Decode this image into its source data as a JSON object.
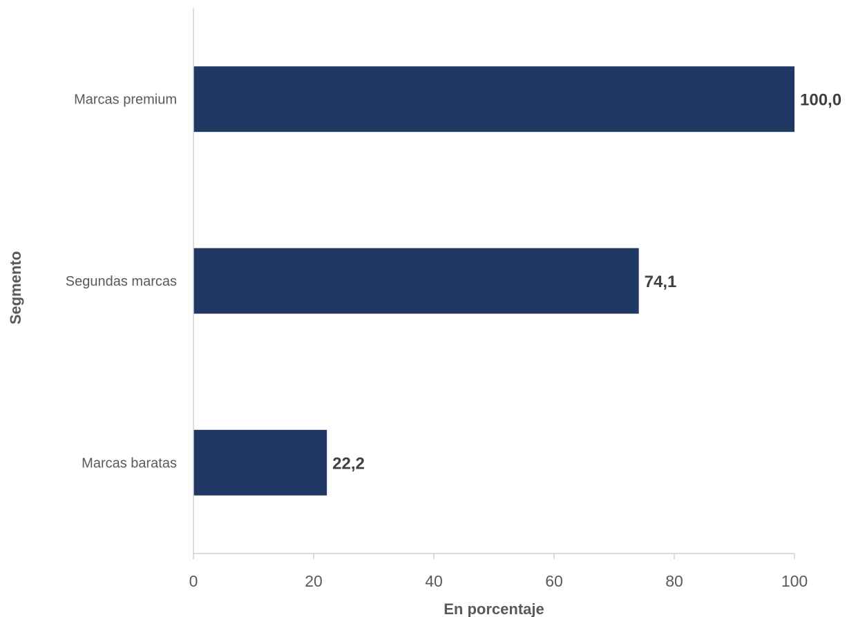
{
  "chart_data": {
    "type": "bar",
    "orientation": "horizontal",
    "categories": [
      "Marcas premium",
      "Segundas marcas",
      "Marcas baratas"
    ],
    "values": [
      100.0,
      74.1,
      22.2
    ],
    "data_labels": [
      "100,0",
      "74,1",
      "22,2"
    ],
    "xlabel": "En porcentaje",
    "ylabel": "Segmento",
    "xlim": [
      0,
      100
    ],
    "xticks": [
      0,
      20,
      40,
      60,
      80,
      100
    ],
    "xtick_labels": [
      "0",
      "20",
      "40",
      "60",
      "80",
      "100"
    ],
    "grid": false,
    "legend": "none",
    "bar_color": "#203864",
    "axis_color": "#d0d0d0"
  }
}
